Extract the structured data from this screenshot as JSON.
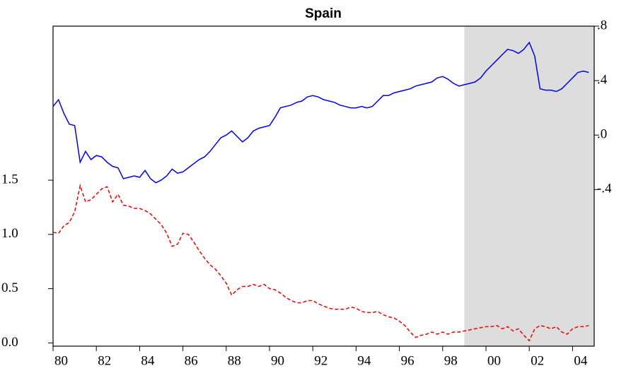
{
  "chart_data": {
    "type": "line",
    "title": "Spain",
    "x": [
      1980,
      1980.25,
      1980.5,
      1980.75,
      1981,
      1981.25,
      1981.5,
      1981.75,
      1982,
      1982.25,
      1982.5,
      1982.75,
      1983,
      1983.25,
      1983.5,
      1983.75,
      1984,
      1984.25,
      1984.5,
      1984.75,
      1985,
      1985.25,
      1985.5,
      1985.75,
      1986,
      1986.25,
      1986.5,
      1986.75,
      1987,
      1987.25,
      1987.5,
      1987.75,
      1988,
      1988.25,
      1988.5,
      1988.75,
      1989,
      1989.25,
      1989.5,
      1989.75,
      1990,
      1990.25,
      1990.5,
      1990.75,
      1991,
      1991.25,
      1991.5,
      1991.75,
      1992,
      1992.25,
      1992.5,
      1992.75,
      1993,
      1993.25,
      1993.5,
      1993.75,
      1994,
      1994.25,
      1994.5,
      1994.75,
      1995,
      1995.25,
      1995.5,
      1995.75,
      1996,
      1996.25,
      1996.5,
      1996.75,
      1997,
      1997.25,
      1997.5,
      1997.75,
      1998,
      1998.25,
      1998.5,
      1998.75,
      1999,
      1999.25,
      1999.5,
      1999.75,
      2000,
      2000.25,
      2000.5,
      2000.75,
      2001,
      2001.25,
      2001.5,
      2001.75,
      2002,
      2002.25,
      2002.5,
      2002.75,
      2003,
      2003.25,
      2003.5,
      2003.75,
      2004,
      2004.25,
      2004.5,
      2004.75
    ],
    "series": [
      {
        "color": "#0000ee",
        "axis": "y2",
        "dashed": false,
        "values": [
          0.21,
          0.26,
          0.16,
          0.08,
          0.07,
          -0.2,
          -0.12,
          -0.18,
          -0.15,
          -0.16,
          -0.2,
          -0.23,
          -0.24,
          -0.32,
          -0.31,
          -0.3,
          -0.31,
          -0.26,
          -0.32,
          -0.35,
          -0.33,
          -0.3,
          -0.25,
          -0.28,
          -0.27,
          -0.24,
          -0.21,
          -0.18,
          -0.16,
          -0.12,
          -0.07,
          -0.02,
          0.0,
          0.03,
          -0.01,
          -0.05,
          -0.02,
          0.03,
          0.05,
          0.06,
          0.07,
          0.13,
          0.2,
          0.21,
          0.22,
          0.24,
          0.25,
          0.28,
          0.29,
          0.28,
          0.26,
          0.25,
          0.24,
          0.22,
          0.21,
          0.2,
          0.2,
          0.21,
          0.2,
          0.21,
          0.25,
          0.29,
          0.29,
          0.31,
          0.32,
          0.33,
          0.34,
          0.36,
          0.37,
          0.38,
          0.39,
          0.42,
          0.43,
          0.41,
          0.38,
          0.36,
          0.37,
          0.38,
          0.39,
          0.42,
          0.47,
          0.51,
          0.55,
          0.59,
          0.63,
          0.62,
          0.6,
          0.63,
          0.68,
          0.58,
          0.34,
          0.33,
          0.33,
          0.32,
          0.34,
          0.38,
          0.42,
          0.46,
          0.47,
          0.46
        ]
      },
      {
        "color": "#ee0000",
        "axis": "y",
        "dashed": true,
        "values": [
          1.02,
          1.01,
          1.08,
          1.11,
          1.21,
          1.45,
          1.3,
          1.32,
          1.37,
          1.42,
          1.44,
          1.3,
          1.37,
          1.27,
          1.26,
          1.24,
          1.24,
          1.22,
          1.19,
          1.14,
          1.09,
          1.01,
          0.89,
          0.91,
          1.01,
          1.0,
          0.93,
          0.85,
          0.78,
          0.72,
          0.68,
          0.62,
          0.55,
          0.44,
          0.49,
          0.52,
          0.52,
          0.54,
          0.52,
          0.54,
          0.5,
          0.49,
          0.46,
          0.42,
          0.39,
          0.37,
          0.37,
          0.39,
          0.39,
          0.36,
          0.34,
          0.32,
          0.31,
          0.31,
          0.31,
          0.33,
          0.32,
          0.29,
          0.28,
          0.28,
          0.29,
          0.26,
          0.24,
          0.23,
          0.2,
          0.16,
          0.1,
          0.05,
          0.07,
          0.08,
          0.1,
          0.08,
          0.1,
          0.08,
          0.1,
          0.1,
          0.11,
          0.12,
          0.13,
          0.14,
          0.15,
          0.15,
          0.16,
          0.13,
          0.15,
          0.11,
          0.13,
          0.07,
          0.02,
          0.13,
          0.16,
          0.15,
          0.13,
          0.15,
          0.1,
          0.08,
          0.13,
          0.15,
          0.15,
          0.16
        ]
      }
    ],
    "xlim": [
      1980,
      2005
    ],
    "xticks": [
      {
        "value": 1980,
        "label": "80"
      },
      {
        "value": 1982,
        "label": "82"
      },
      {
        "value": 1984,
        "label": "84"
      },
      {
        "value": 1986,
        "label": "86"
      },
      {
        "value": 1988,
        "label": "88"
      },
      {
        "value": 1990,
        "label": "90"
      },
      {
        "value": 1992,
        "label": "92"
      },
      {
        "value": 1994,
        "label": "94"
      },
      {
        "value": 1996,
        "label": "96"
      },
      {
        "value": 1998,
        "label": "98"
      },
      {
        "value": 2000,
        "label": "00"
      },
      {
        "value": 2002,
        "label": "02"
      },
      {
        "value": 2004,
        "label": "04"
      }
    ],
    "ylim": [
      -0.03,
      2.92
    ],
    "yticks": [
      {
        "value": 0,
        "label": "0.0"
      },
      {
        "value": 0.5,
        "label": "0.5"
      },
      {
        "value": 1,
        "label": "1.0"
      },
      {
        "value": 1.5,
        "label": "1.5"
      }
    ],
    "y2lim": [
      -1.55,
      0.8
    ],
    "y2ticks": [
      {
        "value": -0.4,
        "label": "-.4"
      },
      {
        "value": 0,
        "label": ".0"
      },
      {
        "value": 0.4,
        "label": ".4"
      },
      {
        "value": 0.8,
        "label": ".8"
      }
    ],
    "shade": [
      1999,
      2005
    ],
    "shade_color": "#dddddd"
  }
}
